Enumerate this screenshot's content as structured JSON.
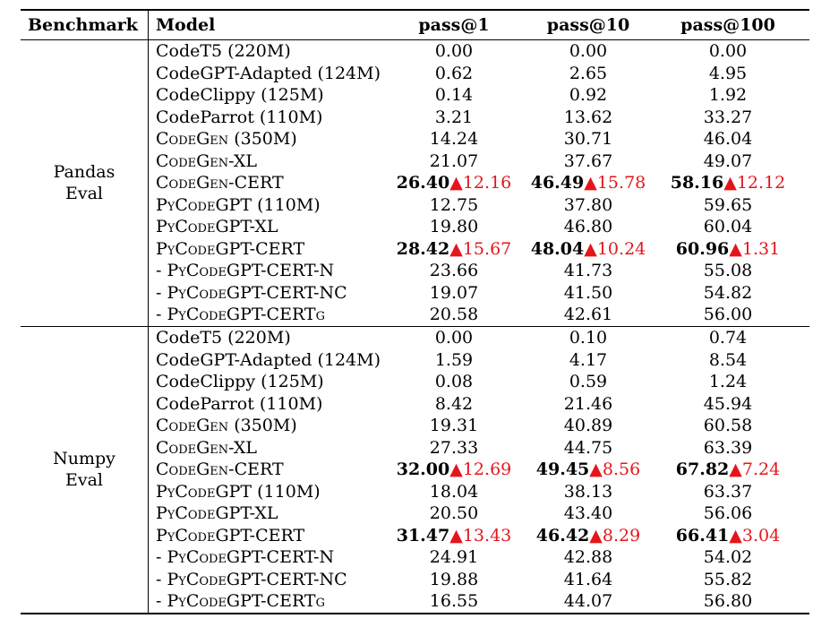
{
  "headers": {
    "benchmark": "Benchmark",
    "model": "Model",
    "p1": "pass@1",
    "p10": "pass@10",
    "p100": "pass@100"
  },
  "groups": [
    {
      "name_line1": "Pandas",
      "name_line2": "Eval",
      "rows": [
        {
          "model": "CodeT5 (220M)",
          "p1": "0.00",
          "p10": "0.00",
          "p100": "0.00"
        },
        {
          "model": "CodeGPT-Adapted (124M)",
          "p1": "0.62",
          "p10": "2.65",
          "p100": "4.95"
        },
        {
          "model": "CodeClippy (125M)",
          "p1": "0.14",
          "p10": "0.92",
          "p100": "1.92"
        },
        {
          "model": "CodeParrot (110M)",
          "p1": "3.21",
          "p10": "13.62",
          "p100": "33.27"
        },
        {
          "model": "CodeGen (350M)",
          "sc": true,
          "p1": "14.24",
          "p10": "30.71",
          "p100": "46.04"
        },
        {
          "model": "CodeGen-XL",
          "sc": true,
          "p1": "21.07",
          "p10": "37.67",
          "p100": "49.07"
        },
        {
          "model": "CodeGen-CERT",
          "sc": true,
          "bold": true,
          "p1": "26.40",
          "d1": "▲12.16",
          "p10": "46.49",
          "d10": "▲15.78",
          "p100": "58.16",
          "d100": "▲12.12"
        },
        {
          "model": "PyCodeGPT (110M)",
          "sc": true,
          "p1": "12.75",
          "p10": "37.80",
          "p100": "59.65"
        },
        {
          "model": "PyCodeGPT-XL",
          "sc": true,
          "p1": "19.80",
          "p10": "46.80",
          "p100": "60.04"
        },
        {
          "model": "PyCodeGPT-CERT",
          "sc": true,
          "bold": true,
          "p1": "28.42",
          "d1": "▲15.67",
          "p10": "48.04",
          "d10": "▲10.24",
          "p100": "60.96",
          "d100": "▲1.31"
        },
        {
          "model": "- PyCodeGPT-CERT-N",
          "sc": true,
          "p1": "23.66",
          "p10": "41.73",
          "p100": "55.08"
        },
        {
          "model": "- PyCodeGPT-CERT-NC",
          "sc": true,
          "p1": "19.07",
          "p10": "41.50",
          "p100": "54.82"
        },
        {
          "model": "- PyCodeGPT-CERTg",
          "sc": true,
          "p1": "20.58",
          "p10": "42.61",
          "p100": "56.00"
        }
      ]
    },
    {
      "name_line1": "Numpy",
      "name_line2": "Eval",
      "rows": [
        {
          "model": "CodeT5 (220M)",
          "p1": "0.00",
          "p10": "0.10",
          "p100": "0.74"
        },
        {
          "model": "CodeGPT-Adapted (124M)",
          "p1": "1.59",
          "p10": "4.17",
          "p100": "8.54"
        },
        {
          "model": "CodeClippy (125M)",
          "p1": "0.08",
          "p10": "0.59",
          "p100": "1.24"
        },
        {
          "model": "CodeParrot (110M)",
          "p1": "8.42",
          "p10": "21.46",
          "p100": "45.94"
        },
        {
          "model": "CodeGen (350M)",
          "sc": true,
          "p1": "19.31",
          "p10": "40.89",
          "p100": "60.58"
        },
        {
          "model": "CodeGen-XL",
          "sc": true,
          "p1": "27.33",
          "p10": "44.75",
          "p100": "63.39"
        },
        {
          "model": "CodeGen-CERT",
          "sc": true,
          "bold": true,
          "p1": "32.00",
          "d1": "▲12.69",
          "p10": "49.45",
          "d10": "▲8.56",
          "p100": "67.82",
          "d100": "▲7.24"
        },
        {
          "model": "PyCodeGPT (110M)",
          "sc": true,
          "p1": "18.04",
          "p10": "38.13",
          "p100": "63.37"
        },
        {
          "model": "PyCodeGPT-XL",
          "sc": true,
          "p1": "20.50",
          "p10": "43.40",
          "p100": "56.06"
        },
        {
          "model": "PyCodeGPT-CERT",
          "sc": true,
          "bold": true,
          "p1": "31.47",
          "d1": "▲13.43",
          "p10": "46.42",
          "d10": "▲8.29",
          "p100": "66.41",
          "d100": "▲3.04"
        },
        {
          "model": "- PyCodeGPT-CERT-N",
          "sc": true,
          "p1": "24.91",
          "p10": "42.88",
          "p100": "54.02"
        },
        {
          "model": "- PyCodeGPT-CERT-NC",
          "sc": true,
          "p1": "19.88",
          "p10": "41.64",
          "p100": "55.82"
        },
        {
          "model": "- PyCodeGPT-CERTg",
          "sc": true,
          "p1": "16.55",
          "p10": "44.07",
          "p100": "56.80"
        }
      ]
    }
  ],
  "colors": {
    "delta": "#e4161b"
  }
}
